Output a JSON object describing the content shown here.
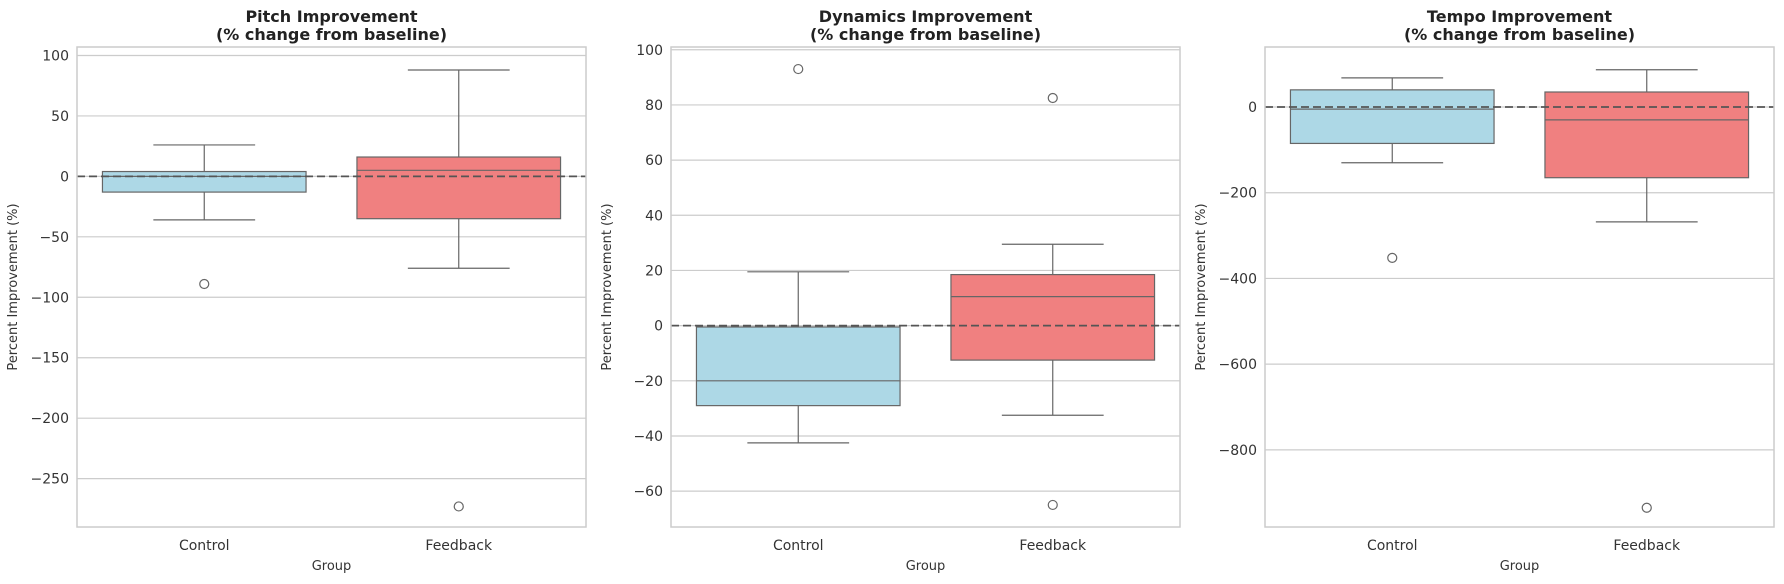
{
  "colors": {
    "Control": "#add8e6",
    "Feedback": "#f08080",
    "grid": "#cccccc",
    "spine": "#cccccc",
    "box_edge": "#666666",
    "baseline": "#555555"
  },
  "chart_data": [
    {
      "type": "box",
      "title": [
        "Pitch Improvement",
        "(% change from baseline)"
      ],
      "xlabel": "Group",
      "ylabel": "Percent Improvement (%)",
      "categories": [
        "Control",
        "Feedback"
      ],
      "ylim": [
        -290,
        107
      ],
      "yticks": [
        100,
        50,
        0,
        -50,
        -100,
        -150,
        -200,
        -250
      ],
      "grid": true,
      "baseline": 0,
      "boxes": [
        {
          "group": "Control",
          "whisker_low": -36,
          "q1": -13,
          "median": 0,
          "q3": 4,
          "whisker_high": 26,
          "outliers": [
            -89
          ]
        },
        {
          "group": "Feedback",
          "whisker_low": -76,
          "q1": -35,
          "median": 5,
          "q3": 16,
          "whisker_high": 88,
          "outliers": [
            -273
          ]
        }
      ]
    },
    {
      "type": "box",
      "title": [
        "Dynamics Improvement",
        "(% change from baseline)"
      ],
      "xlabel": "Group",
      "ylabel": "Percent Improvement (%)",
      "categories": [
        "Control",
        "Feedback"
      ],
      "ylim": [
        -73,
        101
      ],
      "yticks": [
        100,
        80,
        60,
        40,
        20,
        0,
        -20,
        -40,
        -60
      ],
      "grid": true,
      "baseline": 0,
      "boxes": [
        {
          "group": "Control",
          "whisker_low": -42.5,
          "q1": -29,
          "median": -20,
          "q3": -0.5,
          "whisker_high": 19.5,
          "outliers": [
            93
          ]
        },
        {
          "group": "Feedback",
          "whisker_low": -32.5,
          "q1": -12.5,
          "median": 10.5,
          "q3": 18.5,
          "whisker_high": 29.5,
          "outliers": [
            82.5,
            -65
          ]
        }
      ]
    },
    {
      "type": "box",
      "title": [
        "Tempo Improvement",
        "(% change from baseline)"
      ],
      "xlabel": "Group",
      "ylabel": "Percent Improvement (%)",
      "categories": [
        "Control",
        "Feedback"
      ],
      "ylim": [
        -980,
        140
      ],
      "yticks": [
        0,
        -200,
        -400,
        -600,
        -800
      ],
      "grid": true,
      "baseline": 0,
      "boxes": [
        {
          "group": "Control",
          "whisker_low": -130,
          "q1": -85,
          "median": -5,
          "q3": 40,
          "whisker_high": 68,
          "outliers": [
            -352
          ]
        },
        {
          "group": "Feedback",
          "whisker_low": -268,
          "q1": -165,
          "median": -30,
          "q3": 35,
          "whisker_high": 87,
          "outliers": [
            -935
          ]
        }
      ]
    }
  ]
}
